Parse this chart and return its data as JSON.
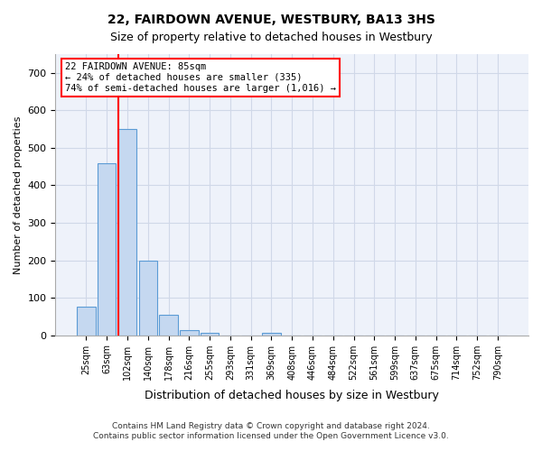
{
  "title": "22, FAIRDOWN AVENUE, WESTBURY, BA13 3HS",
  "subtitle": "Size of property relative to detached houses in Westbury",
  "xlabel": "Distribution of detached houses by size in Westbury",
  "ylabel": "Number of detached properties",
  "categories": [
    "25sqm",
    "63sqm",
    "102sqm",
    "140sqm",
    "178sqm",
    "216sqm",
    "255sqm",
    "293sqm",
    "331sqm",
    "369sqm",
    "408sqm",
    "446sqm",
    "484sqm",
    "522sqm",
    "561sqm",
    "599sqm",
    "637sqm",
    "675sqm",
    "714sqm",
    "752sqm",
    "790sqm"
  ],
  "values": [
    75,
    460,
    550,
    200,
    55,
    13,
    7,
    0,
    0,
    7,
    0,
    0,
    0,
    0,
    0,
    0,
    0,
    0,
    0,
    0,
    0
  ],
  "bar_color": "#c5d8f0",
  "bar_edge_color": "#5b9bd5",
  "red_line_x": 1.564,
  "annotation_box_text": "22 FAIRDOWN AVENUE: 85sqm\n← 24% of detached houses are smaller (335)\n74% of semi-detached houses are larger (1,016) →",
  "grid_color": "#d0d8e8",
  "background_color": "#eef2fa",
  "ylim": [
    0,
    750
  ],
  "yticks": [
    0,
    100,
    200,
    300,
    400,
    500,
    600,
    700
  ],
  "footer_line1": "Contains HM Land Registry data © Crown copyright and database right 2024.",
  "footer_line2": "Contains public sector information licensed under the Open Government Licence v3.0."
}
